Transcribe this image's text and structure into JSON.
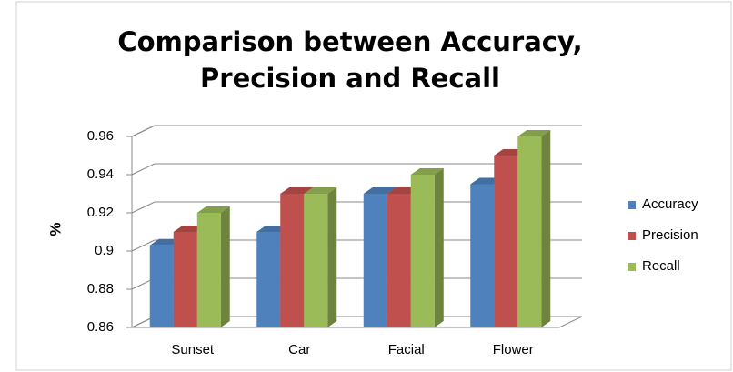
{
  "chart_data": {
    "type": "bar3d",
    "title": [
      "Comparison between Accuracy,",
      "Precision and Recall"
    ],
    "ylabel": "%",
    "categories": [
      "Sunset",
      "Car",
      "Facial",
      "Flower"
    ],
    "series": [
      {
        "name": "Accuracy",
        "color": "#4f81bd",
        "values": [
          0.903,
          0.91,
          0.93,
          0.935
        ]
      },
      {
        "name": "Precision",
        "color": "#c0504d",
        "values": [
          0.91,
          0.93,
          0.93,
          0.95
        ]
      },
      {
        "name": "Recall",
        "color": "#9bbb59",
        "values": [
          0.92,
          0.93,
          0.94,
          0.96
        ]
      }
    ],
    "ylim": [
      0.86,
      0.96
    ],
    "yticks": [
      0.86,
      0.88,
      0.9,
      0.92,
      0.94,
      0.96
    ],
    "grid": true,
    "legend": "right"
  }
}
